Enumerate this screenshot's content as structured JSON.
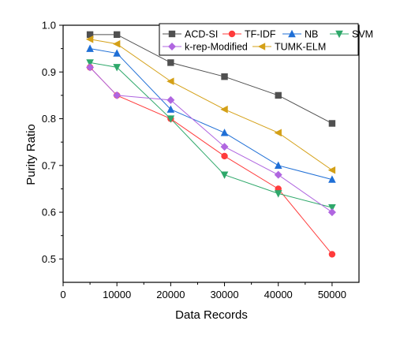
{
  "chart_data": {
    "type": "line",
    "title": "",
    "xlabel": "Data Records",
    "ylabel": "Purity Ratio",
    "xlim": [
      0,
      55000
    ],
    "ylim": [
      0.45,
      1.0
    ],
    "xticks": [
      0,
      10000,
      20000,
      30000,
      40000,
      50000
    ],
    "yticks": [
      0.5,
      0.6,
      0.7,
      0.8,
      0.9,
      1.0
    ],
    "xtick_labels": [
      "0",
      "10000",
      "20000",
      "30000",
      "40000",
      "50000"
    ],
    "ytick_labels": [
      "0.5",
      "0.6",
      "0.7",
      "0.8",
      "0.9",
      "1.0"
    ],
    "grid": false,
    "legend_position": "top-right",
    "x": [
      5000,
      10000,
      20000,
      30000,
      40000,
      50000
    ],
    "series": [
      {
        "name": "ACD-SI",
        "color": "#505050",
        "marker": "square",
        "values": [
          0.98,
          0.98,
          0.92,
          0.89,
          0.85,
          0.79
        ]
      },
      {
        "name": "TF-IDF",
        "color": "#ff3b3b",
        "marker": "circle",
        "values": [
          0.91,
          0.85,
          0.8,
          0.72,
          0.65,
          0.51
        ]
      },
      {
        "name": "NB",
        "color": "#1f6fd6",
        "marker": "triangle-up",
        "values": [
          0.95,
          0.94,
          0.82,
          0.77,
          0.7,
          0.67
        ]
      },
      {
        "name": "SVM",
        "color": "#2ea86a",
        "marker": "triangle-down",
        "values": [
          0.92,
          0.91,
          0.8,
          0.68,
          0.64,
          0.61
        ]
      },
      {
        "name": "k-rep-Modified",
        "color": "#b066e0",
        "marker": "diamond",
        "values": [
          0.91,
          0.85,
          0.84,
          0.74,
          0.68,
          0.6
        ]
      },
      {
        "name": "TUMK-ELM",
        "color": "#d4a017",
        "marker": "triangle-left",
        "values": [
          0.97,
          0.96,
          0.88,
          0.82,
          0.77,
          0.69
        ]
      }
    ]
  }
}
